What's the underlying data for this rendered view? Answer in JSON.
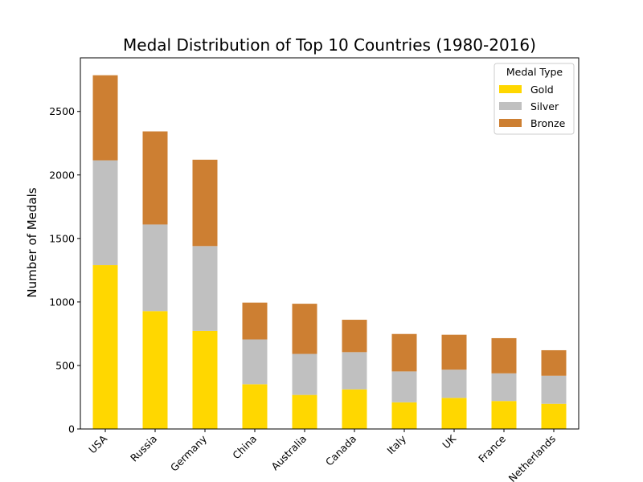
{
  "chart_data": {
    "type": "bar",
    "stacked": true,
    "title": "Medal Distribution of Top 10 Countries (1980-2016)",
    "xlabel": "",
    "ylabel": "Number of Medals",
    "categories": [
      "USA",
      "Russia",
      "Germany",
      "China",
      "Australia",
      "Canada",
      "Italy",
      "UK",
      "France",
      "Netherlands"
    ],
    "series": [
      {
        "name": "Gold",
        "color": "#FFD700",
        "values": [
          1290,
          928,
          772,
          352,
          268,
          312,
          210,
          245,
          220,
          198
        ]
      },
      {
        "name": "Silver",
        "color": "#C0C0C0",
        "values": [
          825,
          682,
          668,
          353,
          323,
          293,
          243,
          222,
          218,
          221
        ]
      },
      {
        "name": "Bronze",
        "color": "#CD7F32",
        "values": [
          670,
          733,
          680,
          290,
          395,
          255,
          295,
          275,
          277,
          201
        ]
      }
    ],
    "yticks": [
      0,
      500,
      1000,
      1500,
      2000,
      2500
    ],
    "ylim": [
      0,
      2922
    ],
    "legend": {
      "title": "Medal Type",
      "position": "top-right"
    },
    "grid": false
  }
}
